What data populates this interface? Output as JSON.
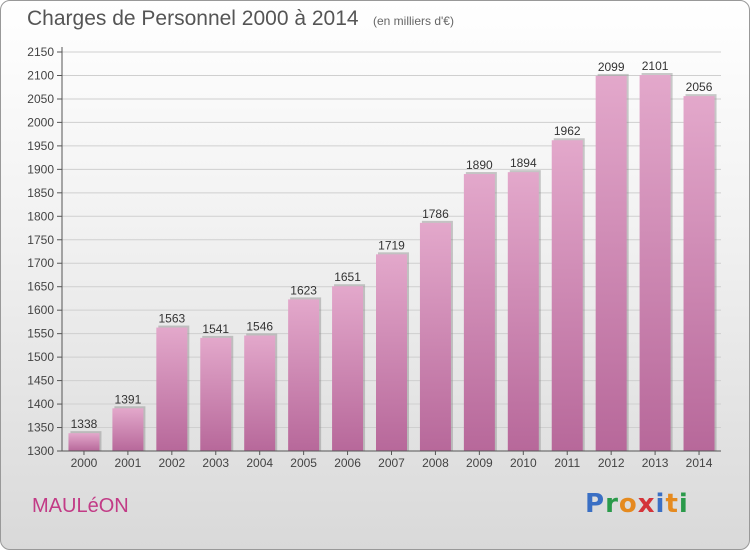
{
  "header": {
    "title": "Charges de Personnel 2000 à 2014",
    "subtitle": "(en milliers d'€)"
  },
  "footer": {
    "town": "MAULéON",
    "logo_text": "Proxiti",
    "logo_colors": [
      "#3a6fc4",
      "#2a9a4a",
      "#e58a1f",
      "#d4343a",
      "#3a6fc4",
      "#e58a1f",
      "#2a9a4a"
    ]
  },
  "colors": {
    "bar_top": "#e3a8cb",
    "bar_bottom": "#b7689a",
    "bar_shadow": "#8a8a8a",
    "axis": "#555555",
    "grid": "#cfcfcf"
  },
  "chart_data": {
    "type": "bar",
    "title": "Charges de Personnel 2000 à 2014",
    "subtitle": "(en milliers d'€)",
    "categories": [
      "2000",
      "2001",
      "2002",
      "2003",
      "2004",
      "2005",
      "2006",
      "2007",
      "2008",
      "2009",
      "2010",
      "2011",
      "2012",
      "2013",
      "2014"
    ],
    "values": [
      1338,
      1391,
      1563,
      1541,
      1546,
      1623,
      1651,
      1719,
      1786,
      1890,
      1894,
      1962,
      2099,
      2101,
      2056
    ],
    "ylim": [
      1300,
      2150
    ],
    "yticks": [
      1300,
      1350,
      1400,
      1450,
      1500,
      1550,
      1600,
      1650,
      1700,
      1750,
      1800,
      1850,
      1900,
      1950,
      2000,
      2050,
      2100,
      2150
    ],
    "grid": true,
    "data_labels": true
  }
}
